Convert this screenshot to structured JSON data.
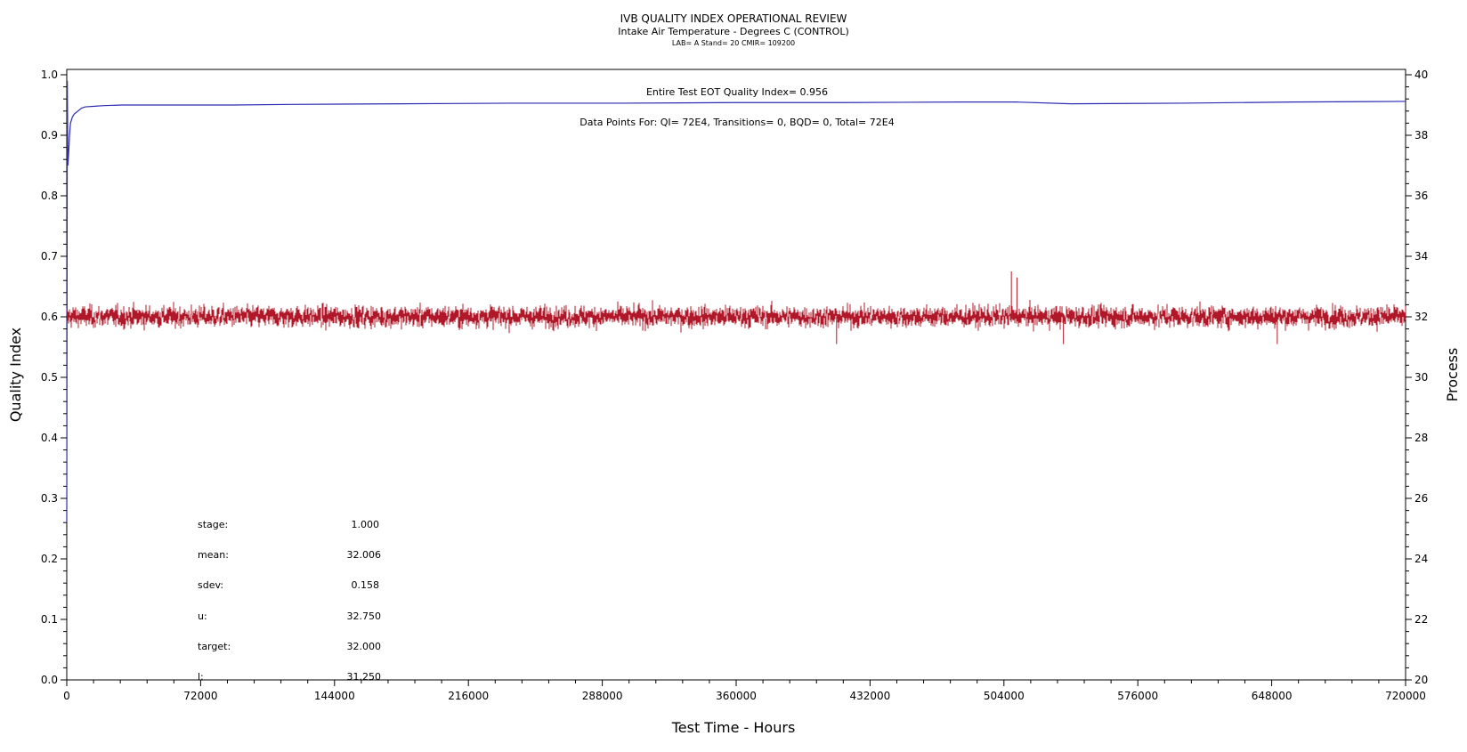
{
  "chart_data": {
    "type": "line",
    "title": "IVB QUALITY INDEX OPERATIONAL REVIEW",
    "subtitle": "Intake Air Temperature - Degrees C (CONTROL)",
    "subtitle2": "LAB= A Stand= 20 CMIR= 109200",
    "xlabel": "Test Time - Hours",
    "ylabel": "Quality Index",
    "y2label": "Process",
    "xlim": [
      0,
      720000
    ],
    "ylim": [
      0.0,
      1.0
    ],
    "y2lim": [
      20,
      40
    ],
    "xticks": [
      "0",
      "72000",
      "144000",
      "216000",
      "288000",
      "360000",
      "432000",
      "504000",
      "576000",
      "648000",
      "720000"
    ],
    "yticks": [
      "0.0",
      "0.1",
      "0.2",
      "0.3",
      "0.4",
      "0.5",
      "0.6",
      "0.7",
      "0.8",
      "0.9",
      "1.0"
    ],
    "y2ticks": [
      "20",
      "22",
      "24",
      "26",
      "28",
      "30",
      "32",
      "34",
      "36",
      "38",
      "40"
    ],
    "annotations": {
      "quality_index_text": "Entire Test EOT Quality Index=   0.956",
      "data_points_text": "Data Points For: QI=  72E4, Transitions=     0, BQD=     0, Total=  72E4"
    },
    "stats": [
      {
        "label": "stage:",
        "value": "1.000"
      },
      {
        "label": "mean:",
        "value": "32.006"
      },
      {
        "label": "sdev:",
        "value": "0.158"
      },
      {
        "label": "u:",
        "value": "32.750"
      },
      {
        "label": "target:",
        "value": "32.000"
      },
      {
        "label": "l:",
        "value": "31.250"
      }
    ],
    "series": [
      {
        "axis": "left",
        "color": "#2b2bb5",
        "x": [
          0,
          300,
          600,
          1000,
          1500,
          2000,
          3000,
          4000,
          6000,
          8000,
          10000,
          15000,
          20000,
          30000,
          60000,
          90000,
          120000,
          180000,
          240000,
          300000,
          360000,
          420000,
          480000,
          510000,
          540000,
          600000,
          660000,
          720000
        ],
        "y": [
          0.26,
          0.99,
          0.85,
          0.87,
          0.9,
          0.92,
          0.93,
          0.935,
          0.94,
          0.945,
          0.947,
          0.948,
          0.949,
          0.95,
          0.95,
          0.95,
          0.951,
          0.952,
          0.953,
          0.953,
          0.954,
          0.954,
          0.955,
          0.955,
          0.952,
          0.953,
          0.955,
          0.956
        ]
      },
      {
        "axis": "right",
        "color": "#b0182a",
        "mean": 32.006,
        "sdev": 0.158,
        "spikes": [
          {
            "x": 508000,
            "y": 33.5
          },
          {
            "x": 511000,
            "y": 33.3
          },
          {
            "x": 414000,
            "y": 31.1
          },
          {
            "x": 536000,
            "y": 31.1
          },
          {
            "x": 651000,
            "y": 31.1
          }
        ]
      }
    ]
  }
}
